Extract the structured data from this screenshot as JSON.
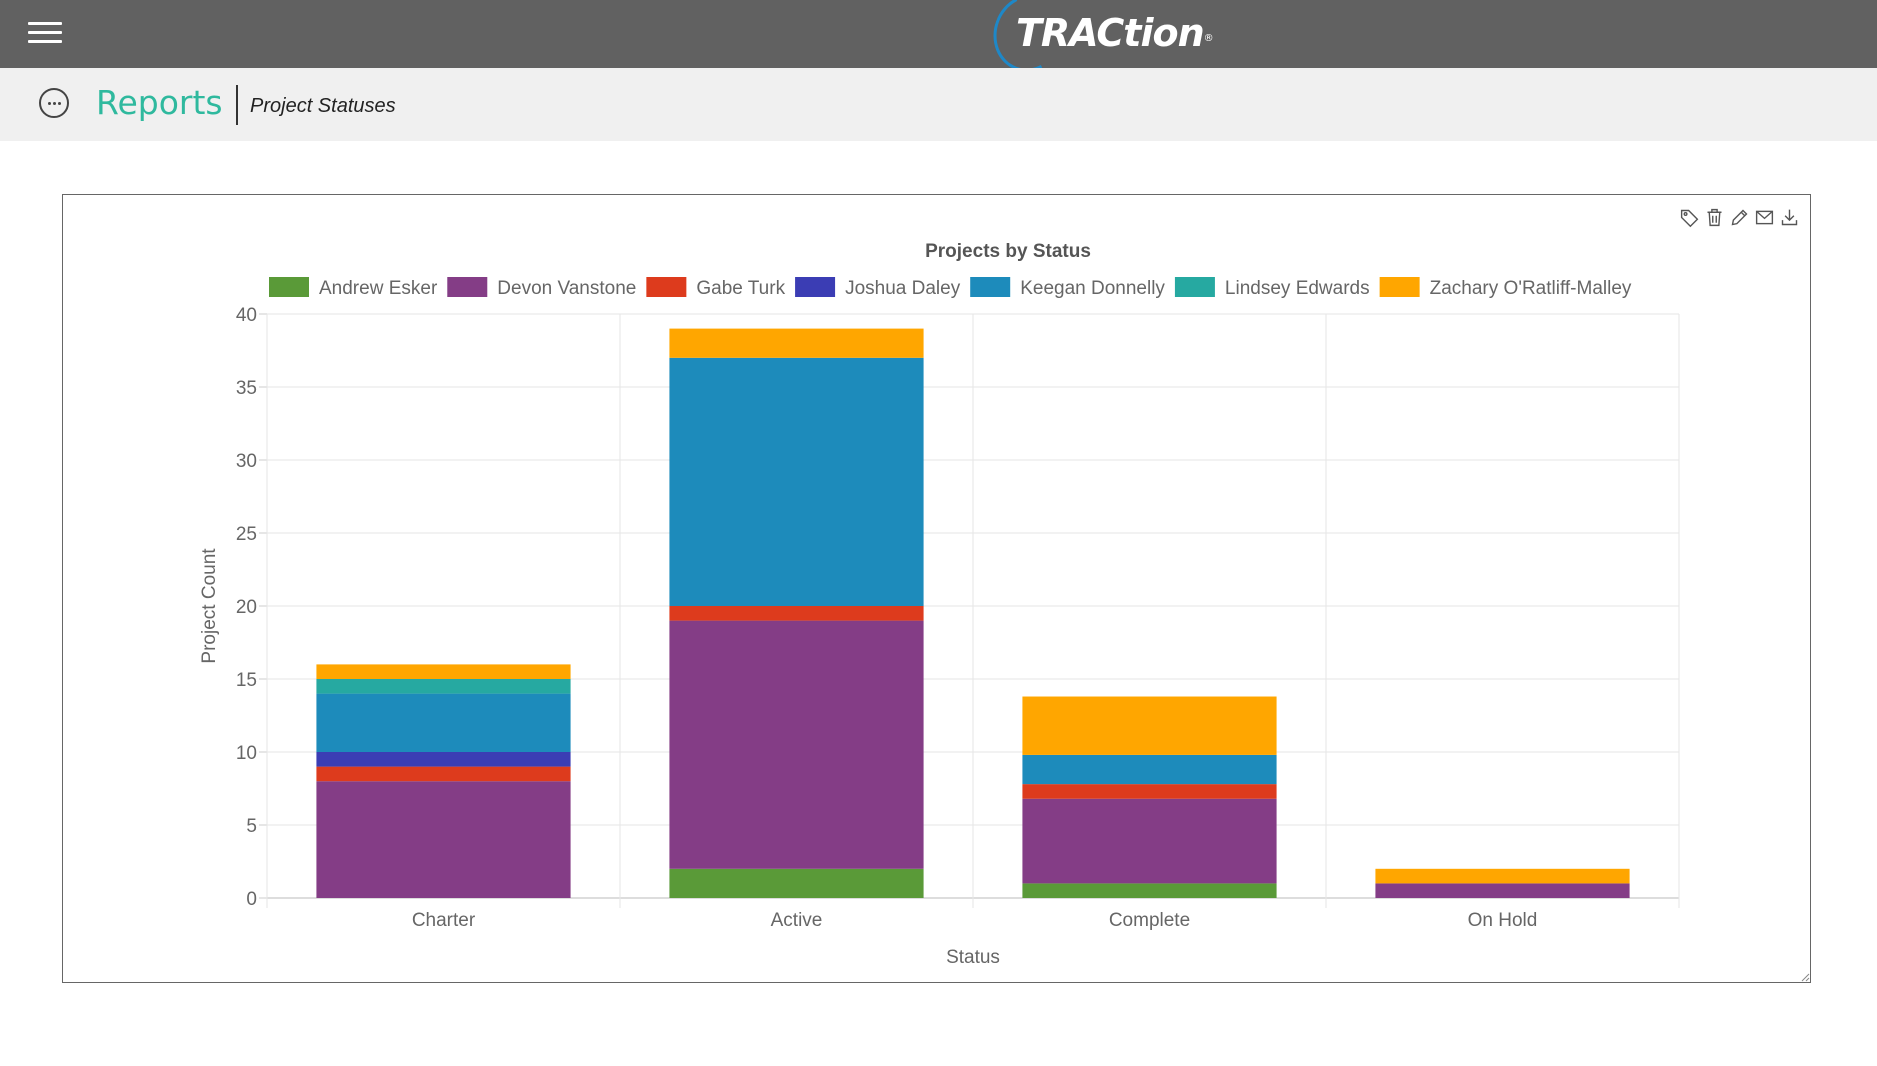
{
  "app": {
    "brand": "RACtion",
    "brand_initial": "T",
    "brand_mark": "®",
    "menu_icon": "hamburger-menu-icon"
  },
  "header": {
    "title": "Reports",
    "breadcrumb": "Project Statuses",
    "more_icon": "more-options-icon"
  },
  "toolbar": {
    "icons": [
      "tag-icon",
      "trash-icon",
      "edit-icon",
      "email-icon",
      "download-icon"
    ]
  },
  "chart_data": {
    "type": "bar",
    "stacked": true,
    "title": "Projects by Status",
    "xlabel": "Status",
    "ylabel": "Project Count",
    "ylim": [
      0,
      40
    ],
    "yticks": [
      0,
      5,
      10,
      15,
      20,
      25,
      30,
      35,
      40
    ],
    "legend_position": "top",
    "grid": true,
    "categories": [
      "Charter",
      "Active",
      "Complete",
      "On Hold"
    ],
    "series": [
      {
        "name": "Andrew Esker",
        "color": "#5a9a38",
        "values": [
          0,
          2,
          1,
          0
        ]
      },
      {
        "name": "Devon Vanstone",
        "color": "#843d86",
        "values": [
          8,
          17,
          5.8,
          1
        ]
      },
      {
        "name": "Gabe Turk",
        "color": "#dd3b1d",
        "values": [
          1,
          1,
          1,
          0
        ]
      },
      {
        "name": "Joshua Daley",
        "color": "#3b3db4",
        "values": [
          1,
          0,
          0,
          0
        ]
      },
      {
        "name": "Keegan Donnelly",
        "color": "#1d8bbb",
        "values": [
          4,
          17,
          2,
          0
        ]
      },
      {
        "name": "Lindsey Edwards",
        "color": "#26a9a1",
        "values": [
          1,
          0,
          0,
          0
        ]
      },
      {
        "name": "Zachary O'Ratliff-Malley",
        "color": "#ffa600",
        "values": [
          1,
          2,
          4,
          1
        ]
      }
    ]
  }
}
